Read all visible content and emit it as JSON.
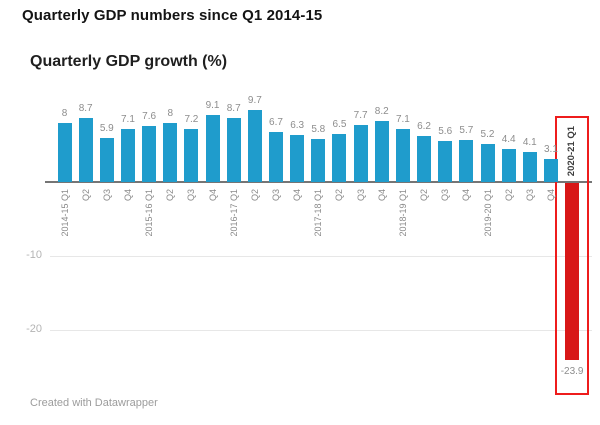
{
  "header": {
    "title": "Quarterly GDP numbers since Q1 2014-15"
  },
  "footer": {
    "credit": "Created with Datawrapper"
  },
  "chart_data": {
    "type": "bar",
    "title": "Quarterly GDP growth (%)",
    "categories": [
      "2014-15 Q1",
      "Q2",
      "Q3",
      "Q4",
      "2015-16 Q1",
      "Q2",
      "Q3",
      "Q4",
      "2016-17 Q1",
      "Q2",
      "Q3",
      "Q4",
      "2017-18 Q1",
      "Q2",
      "Q3",
      "Q4",
      "2018-19 Q1",
      "Q2",
      "Q3",
      "Q4",
      "2019-20 Q1",
      "Q2",
      "Q3",
      "Q4",
      "2020-21 Q1"
    ],
    "values": [
      8,
      8.7,
      5.9,
      7.1,
      7.6,
      8,
      7.2,
      9.1,
      8.7,
      9.7,
      6.7,
      6.3,
      5.8,
      6.5,
      7.7,
      8.2,
      7.1,
      6.2,
      5.6,
      5.7,
      5.2,
      4.4,
      4.1,
      3.1,
      -23.9
    ],
    "highlighted_index": 24,
    "highlighted_value_label": "-23.9",
    "y_gridlines": [
      -10,
      -20
    ],
    "ylim": [
      -25,
      10
    ],
    "xlabel": "",
    "ylabel": "",
    "legend": "none",
    "colors": {
      "bar": "#1f9ccc",
      "negative_bar": "#d81717",
      "highlight_box": "#ee1c1c",
      "axis": "#757575",
      "gridline": "#e7e7e7",
      "value_label": "#8d8d8d",
      "tick_label": "#8a8a8a",
      "highlight_label": "#3c3c3c"
    }
  }
}
